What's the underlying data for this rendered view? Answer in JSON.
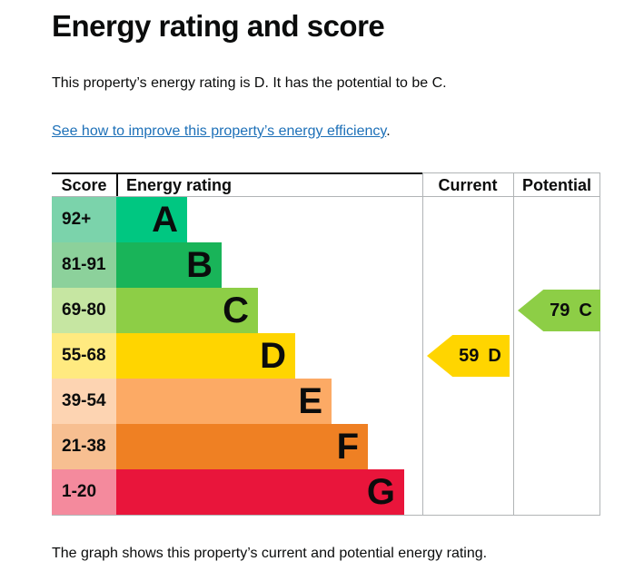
{
  "page": {
    "title": "Energy rating and score",
    "intro": "This property’s energy rating is D. It has the potential to be C.",
    "link_text": "See how to improve this property’s energy efficiency",
    "link_suffix": ".",
    "caption": "The graph shows this property’s current and potential energy rating."
  },
  "colors": {
    "text": "#0b0c0c",
    "link_blue": "#1d70b8",
    "grid_grey": "#b1b4b6",
    "border_black": "#0b0c0c"
  },
  "chart": {
    "headers": {
      "score": "Score",
      "rating": "Energy rating",
      "current": "Current",
      "potential": "Potential"
    },
    "bands": [
      {
        "range": "92+",
        "letter": "A",
        "color": "#00c781",
        "tint": "#7bd3ab"
      },
      {
        "range": "81-91",
        "letter": "B",
        "color": "#19b459",
        "tint": "#8cd19b"
      },
      {
        "range": "69-80",
        "letter": "C",
        "color": "#8dce46",
        "tint": "#c6e6a2"
      },
      {
        "range": "55-68",
        "letter": "D",
        "color": "#ffd500",
        "tint": "#ffea80"
      },
      {
        "range": "39-54",
        "letter": "E",
        "color": "#fcaa65",
        "tint": "#fdd4b2"
      },
      {
        "range": "21-38",
        "letter": "F",
        "color": "#ef8023",
        "tint": "#f7bf91"
      },
      {
        "range": "1-20",
        "letter": "G",
        "color": "#e9153b",
        "tint": "#f48a9d"
      }
    ],
    "current": {
      "score": "59",
      "band": "D",
      "color": "#ffd500"
    },
    "potential": {
      "score": "79",
      "band": "C",
      "color": "#8dce46"
    }
  },
  "chart_data": {
    "type": "bar",
    "title": "Energy rating and score",
    "categories": [
      "A",
      "B",
      "C",
      "D",
      "E",
      "F",
      "G"
    ],
    "score_ranges": [
      "92+",
      "81-91",
      "69-80",
      "55-68",
      "39-54",
      "21-38",
      "1-20"
    ],
    "values": [
      78,
      116,
      156,
      197,
      237,
      277,
      317
    ],
    "band_colors": [
      "#00c781",
      "#19b459",
      "#8dce46",
      "#ffd500",
      "#fcaa65",
      "#ef8023",
      "#e9153b"
    ],
    "columns": [
      "Score",
      "Energy rating",
      "Current",
      "Potential"
    ],
    "current_rating": {
      "score": 59,
      "band": "D"
    },
    "potential_rating": {
      "score": 79,
      "band": "C"
    },
    "legend_position": "none",
    "grid": false
  }
}
